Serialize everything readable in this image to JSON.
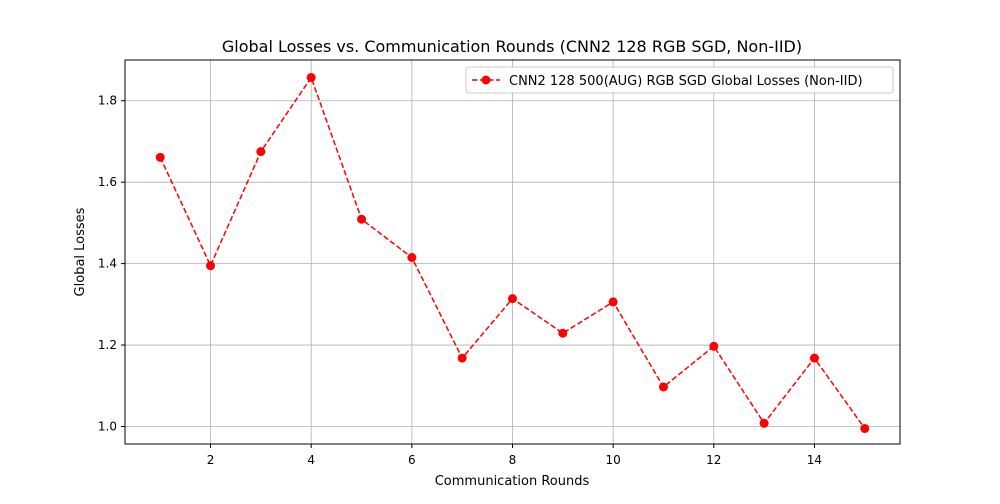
{
  "chart_data": {
    "type": "line",
    "title": "Global Losses vs. Communication Rounds (CNN2 128 RGB SGD, Non-IID)",
    "xlabel": "Communication Rounds",
    "ylabel": "Global Losses",
    "xlim": [
      0.3,
      15.7
    ],
    "ylim": [
      0.957,
      1.9
    ],
    "xticks": [
      2,
      4,
      6,
      8,
      10,
      12,
      14
    ],
    "xtick_labels": [
      "2",
      "4",
      "6",
      "8",
      "10",
      "12",
      "14"
    ],
    "yticks": [
      1.0,
      1.2,
      1.4,
      1.6,
      1.8
    ],
    "ytick_labels": [
      "1.0",
      "1.2",
      "1.4",
      "1.6",
      "1.8"
    ],
    "grid": true,
    "legend_position": "top-right",
    "series": [
      {
        "name": "CNN2 128 500(AUG) RGB SGD Global Losses (Non-IID)",
        "color": "#ff0000",
        "line_style": "dashed",
        "marker": "circle",
        "x": [
          1,
          2,
          3,
          4,
          5,
          6,
          7,
          8,
          9,
          10,
          11,
          12,
          13,
          14,
          15
        ],
        "y": [
          1.661,
          1.395,
          1.675,
          1.857,
          1.509,
          1.415,
          1.168,
          1.314,
          1.229,
          1.306,
          1.097,
          1.197,
          1.008,
          1.168,
          0.995
        ]
      }
    ]
  }
}
